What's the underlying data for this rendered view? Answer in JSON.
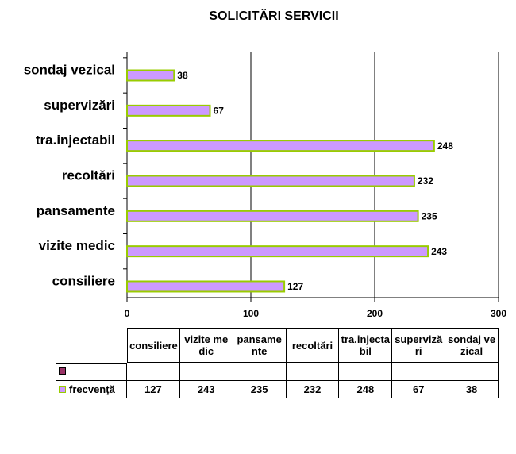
{
  "chart_data": {
    "type": "bar",
    "orientation": "horizontal",
    "title": "SOLICITĂRI SERVICII",
    "categories": [
      "consiliere",
      "vizite medic",
      "pansamente",
      "recoltări",
      "tra.injectabil",
      "supervizări",
      "sondaj vezical"
    ],
    "series": [
      {
        "name": null,
        "color": "#993366",
        "values": [
          null,
          null,
          null,
          null,
          null,
          null,
          null
        ]
      },
      {
        "name": "frecvenţă",
        "color": "#cc99ff",
        "edge_color": "#99cc00",
        "values": [
          127,
          243,
          235,
          232,
          248,
          67,
          38
        ]
      }
    ],
    "xlim": [
      0,
      300
    ],
    "xticks": [
      0,
      100,
      200,
      300
    ],
    "grid": true,
    "data_table": true
  }
}
